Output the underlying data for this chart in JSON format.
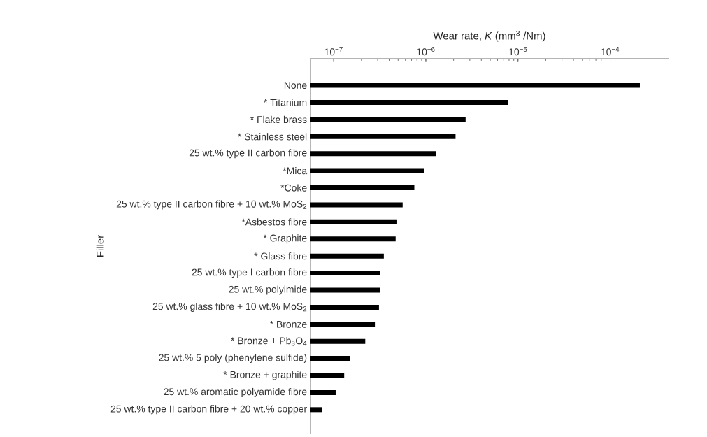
{
  "chart_data": {
    "type": "bar",
    "orientation": "horizontal",
    "log": "x",
    "xlabel": "Wear rate, *K* (mm$^{3}$ /Nm)",
    "ylabel": "Filler",
    "categories": [
      "None",
      "* Titanium",
      "* Flake brass",
      "* Stainless steel",
      "25 wt.% type II carbon fibre",
      "*Mica",
      "*Coke",
      "25 wt.% type II carbon fibre + 10 wt.% MoS$_{2}$",
      "*Asbestos  fibre",
      "* Graphite",
      "* Glass fibre",
      "25 wt.% type I carbon fibre",
      "25 wt.% polyimide",
      "25 wt.% glass fibre + 10 wt.% MoS$_{2}$",
      "* Bronze",
      "* Bronze + Pb$_{3}$O$_{4}$",
      "25 wt.% 5 poly (phenylene sulfide)",
      "* Bronze + graphite",
      "25 wt.% aromatic polyamide fibre",
      "25 wt.% type II carbon fibre + 20 wt.% copper"
    ],
    "values": [
      0.00021,
      7.8e-06,
      2.7e-06,
      2.1e-06,
      1.3e-06,
      9.5e-07,
      7.5e-07,
      5.6e-07,
      4.8e-07,
      4.7e-07,
      3.5e-07,
      3.2e-07,
      3.2e-07,
      3.1e-07,
      2.8e-07,
      2.2e-07,
      1.5e-07,
      1.3e-07,
      1.05e-07,
      7.5e-08
    ],
    "color": "#000000",
    "xlim": [
      5.6e-08,
      0.00043
    ],
    "xticks": [
      {
        "value": 1e-07,
        "label": "10$^{−7}$"
      },
      {
        "value": 1e-06,
        "label": "10$^{−6}$"
      },
      {
        "value": 1e-05,
        "label": "10$^{−5}$"
      },
      {
        "value": 0.0001,
        "label": "10$^{−4}$"
      }
    ]
  }
}
